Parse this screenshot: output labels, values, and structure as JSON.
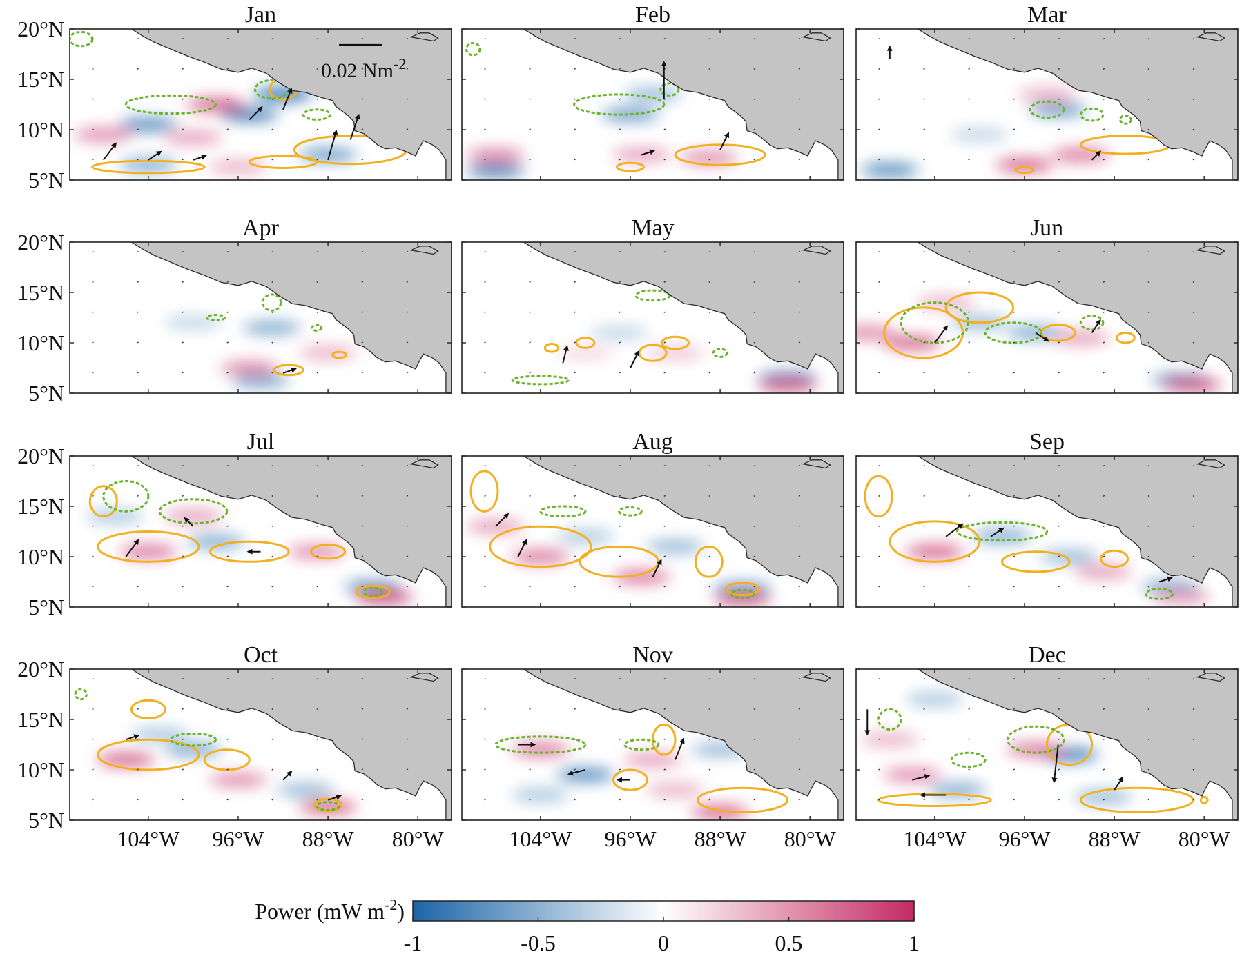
{
  "chart_data": {
    "type": "heatmap",
    "panels": [
      {
        "title": "Jan",
        "blobs": [
          [
            -104,
            10.5,
            -0.8
          ],
          [
            -95,
            11.5,
            -0.9
          ],
          [
            -92,
            13.5,
            -1.0
          ],
          [
            -98,
            12.5,
            0.8
          ],
          [
            -108,
            9.5,
            0.6
          ],
          [
            -100,
            9.2,
            0.5
          ],
          [
            -88,
            7.5,
            -0.7
          ],
          [
            -104,
            6.5,
            -0.6
          ],
          [
            -96,
            6.3,
            0.4
          ]
        ],
        "green": [
          [
            -102,
            12.5,
            4,
            0.9
          ],
          [
            -93,
            14,
            1.5,
            0.9
          ],
          [
            -110,
            19,
            1,
            0.7
          ],
          [
            -89,
            11.5,
            1.2,
            0.5
          ]
        ],
        "orange": [
          [
            -92,
            14,
            1.2,
            1
          ],
          [
            -86,
            8,
            5,
            1.4
          ],
          [
            -104,
            6.3,
            5,
            0.6
          ],
          [
            -92,
            6.8,
            3,
            0.6
          ]
        ],
        "arrows": [
          [
            -108,
            7,
            0.3,
            0.4
          ],
          [
            -104,
            7,
            0.3,
            0.2
          ],
          [
            -100,
            7,
            0.3,
            0.1
          ],
          [
            -95,
            11,
            0.3,
            0.3
          ],
          [
            -92,
            12,
            0.2,
            0.5
          ],
          [
            -86,
            9,
            0.2,
            0.6
          ],
          [
            -88,
            7,
            0.2,
            0.7
          ]
        ]
      },
      {
        "title": "Feb",
        "blobs": [
          [
            -108,
            6,
            -0.9
          ],
          [
            -96,
            11.5,
            -0.7
          ],
          [
            -108,
            7.5,
            0.6
          ],
          [
            -95,
            7.5,
            0.5
          ],
          [
            -89,
            7.2,
            0.6
          ],
          [
            -94,
            13.5,
            -0.5
          ]
        ],
        "green": [
          [
            -97,
            12.5,
            4,
            1
          ],
          [
            -92.5,
            14,
            0.8,
            0.6
          ],
          [
            -110,
            18,
            0.6,
            0.6
          ]
        ],
        "orange": [
          [
            -88,
            7.5,
            4,
            1
          ],
          [
            -96,
            6.3,
            1.2,
            0.4
          ]
        ],
        "arrows": [
          [
            -93,
            13,
            0,
            0.9
          ],
          [
            -88,
            8,
            0.2,
            0.4
          ],
          [
            -95,
            7.5,
            0.3,
            0.1
          ]
        ]
      },
      {
        "title": "Mar",
        "blobs": [
          [
            -108,
            6,
            -0.8
          ],
          [
            -93,
            12,
            -0.7
          ],
          [
            -94,
            13.5,
            0.4
          ],
          [
            -91,
            7.5,
            0.7
          ],
          [
            -96,
            6.5,
            0.8
          ],
          [
            -100,
            9.5,
            -0.3
          ]
        ],
        "green": [
          [
            -94,
            12,
            1.5,
            0.8
          ],
          [
            -90,
            11.5,
            1,
            0.6
          ],
          [
            -87,
            11,
            0.5,
            0.4
          ]
        ],
        "orange": [
          [
            -87,
            8.5,
            4,
            0.9
          ],
          [
            -96,
            6,
            0.8,
            0.3
          ]
        ],
        "arrows": [
          [
            -108,
            17,
            0,
            0.3
          ],
          [
            -90,
            7,
            0.2,
            0.2
          ]
        ]
      },
      {
        "title": "Apr",
        "blobs": [
          [
            -93,
            11.5,
            -0.6
          ],
          [
            -95,
            7.5,
            0.6
          ],
          [
            -94,
            6.2,
            -0.6
          ],
          [
            -100,
            12,
            -0.3
          ],
          [
            -88,
            9,
            0.4
          ]
        ],
        "green": [
          [
            -93,
            14,
            0.8,
            0.8
          ],
          [
            -98,
            12.5,
            0.8,
            0.2
          ],
          [
            -89,
            11.5,
            0.4,
            0.3
          ]
        ],
        "orange": [
          [
            -91.5,
            7.3,
            1.3,
            0.5
          ],
          [
            -87,
            8.8,
            0.6,
            0.3
          ]
        ],
        "arrows": [
          [
            -92,
            7,
            0.3,
            0.1
          ]
        ]
      },
      {
        "title": "May",
        "blobs": [
          [
            -82,
            6.5,
            -0.8
          ],
          [
            -82,
            5.8,
            0.8
          ],
          [
            -97,
            11,
            -0.3
          ],
          [
            -92,
            9,
            0.3
          ],
          [
            -100,
            9,
            0.2
          ]
        ],
        "green": [
          [
            -94,
            14.7,
            1.5,
            0.5
          ],
          [
            -104,
            6.3,
            2.5,
            0.4
          ],
          [
            -88,
            9,
            0.6,
            0.4
          ]
        ],
        "orange": [
          [
            -94,
            9,
            1.2,
            0.8
          ],
          [
            -92,
            10,
            1.2,
            0.6
          ],
          [
            -100,
            10,
            0.8,
            0.5
          ],
          [
            -103,
            9.5,
            0.6,
            0.4
          ]
        ],
        "arrows": [
          [
            -96,
            7.5,
            0.2,
            0.4
          ],
          [
            -102,
            8,
            0.1,
            0.4
          ]
        ]
      },
      {
        "title": "Jun",
        "blobs": [
          [
            -110,
            11,
            0.6
          ],
          [
            -106,
            10,
            0.8
          ],
          [
            -100,
            12,
            -0.5
          ],
          [
            -95,
            11,
            -0.6
          ],
          [
            -91,
            10.5,
            0.5
          ],
          [
            -82,
            6.3,
            -0.8
          ],
          [
            -81,
            5.8,
            0.8
          ],
          [
            -103,
            14,
            0.4
          ]
        ],
        "green": [
          [
            -104,
            12,
            3,
            2
          ],
          [
            -97,
            11,
            2.5,
            1
          ],
          [
            -90,
            12,
            1,
            0.7
          ]
        ],
        "orange": [
          [
            -105,
            11,
            3.5,
            2.5
          ],
          [
            -100,
            13.5,
            3,
            1.5
          ],
          [
            -93,
            11,
            1.5,
            0.8
          ],
          [
            -87,
            10.5,
            0.8,
            0.5
          ]
        ],
        "arrows": [
          [
            -104,
            10,
            0.3,
            0.4
          ],
          [
            -95,
            11,
            0.3,
            -0.2
          ],
          [
            -90,
            11,
            0.2,
            0.3
          ]
        ]
      },
      {
        "title": "Jul",
        "blobs": [
          [
            -104,
            10.5,
            0.7
          ],
          [
            -98,
            11.5,
            -0.6
          ],
          [
            -89,
            10.5,
            0.6
          ],
          [
            -84,
            7,
            -0.7
          ],
          [
            -83,
            6,
            0.9
          ],
          [
            -100,
            14,
            0.5
          ],
          [
            -107,
            14,
            -0.4
          ]
        ],
        "green": [
          [
            -106,
            16,
            2,
            1.5
          ],
          [
            -100,
            14.5,
            3,
            1.2
          ],
          [
            -84,
            6.5,
            0.8,
            0.4
          ]
        ],
        "orange": [
          [
            -104,
            11,
            4.5,
            1.5
          ],
          [
            -95,
            10.5,
            3.5,
            1
          ],
          [
            -88,
            10.5,
            1.5,
            0.7
          ],
          [
            -108,
            15.5,
            1.2,
            1.5
          ],
          [
            -84,
            6.5,
            1.5,
            0.6
          ]
        ],
        "arrows": [
          [
            -94,
            10.5,
            -0.3,
            0
          ],
          [
            -106,
            10,
            0.3,
            0.4
          ],
          [
            -100,
            13,
            -0.2,
            0.2
          ]
        ]
      },
      {
        "title": "Aug",
        "blobs": [
          [
            -104,
            10,
            0.7
          ],
          [
            -95,
            8,
            0.7
          ],
          [
            -92,
            11,
            -0.5
          ],
          [
            -86,
            6.8,
            -0.7
          ],
          [
            -86,
            5.8,
            0.8
          ],
          [
            -100,
            12,
            -0.4
          ],
          [
            -108,
            13,
            0.5
          ]
        ],
        "green": [
          [
            -102,
            14.5,
            2,
            0.5
          ],
          [
            -96,
            14.5,
            1,
            0.4
          ],
          [
            -86,
            6.3,
            1,
            0.4
          ]
        ],
        "orange": [
          [
            -104,
            11,
            4.5,
            2
          ],
          [
            -97,
            9.5,
            3.5,
            1.5
          ],
          [
            -89,
            9.5,
            1.2,
            1.5
          ],
          [
            -109,
            16.5,
            1.2,
            2
          ],
          [
            -86,
            6.8,
            1.5,
            0.6
          ]
        ],
        "arrows": [
          [
            -108,
            13,
            0.3,
            0.3
          ],
          [
            -106,
            10,
            0.2,
            0.4
          ],
          [
            -94,
            8,
            0.2,
            0.4
          ]
        ]
      },
      {
        "title": "Sep",
        "blobs": [
          [
            -104,
            10.5,
            0.8
          ],
          [
            -98,
            12,
            -0.6
          ],
          [
            -92,
            10,
            -0.5
          ],
          [
            -89,
            8.5,
            0.5
          ],
          [
            -83,
            7,
            -0.6
          ],
          [
            -82,
            6,
            0.5
          ]
        ],
        "green": [
          [
            -98,
            12.5,
            4,
            0.9
          ],
          [
            -84,
            6.3,
            1.2,
            0.5
          ]
        ],
        "orange": [
          [
            -104,
            11.5,
            4,
            2
          ],
          [
            -95,
            9.5,
            3,
            1
          ],
          [
            -88,
            9.8,
            1.2,
            0.8
          ],
          [
            -109,
            16,
            1.2,
            2
          ]
        ],
        "arrows": [
          [
            -103,
            12,
            0.4,
            0.3
          ],
          [
            -99,
            12,
            0.3,
            0.2
          ],
          [
            -84,
            7.5,
            0.3,
            0.1
          ]
        ]
      },
      {
        "title": "Oct",
        "blobs": [
          [
            -106,
            11,
            0.8
          ],
          [
            -100,
            12,
            -0.6
          ],
          [
            -96,
            9,
            0.6
          ],
          [
            -90,
            8,
            -0.5
          ],
          [
            -88,
            6.3,
            0.8
          ],
          [
            -103,
            13.5,
            -0.4
          ]
        ],
        "green": [
          [
            -100,
            13,
            2,
            0.6
          ],
          [
            -88,
            6.4,
            1,
            0.4
          ],
          [
            -110,
            17.5,
            0.5,
            0.5
          ]
        ],
        "orange": [
          [
            -104,
            11.5,
            4.5,
            1.5
          ],
          [
            -97,
            11,
            2,
            1
          ],
          [
            -88,
            6.5,
            1.2,
            0.6
          ],
          [
            -104,
            16,
            1.5,
            0.9
          ]
        ],
        "arrows": [
          [
            -106,
            13,
            0.3,
            0.1
          ],
          [
            -92,
            9,
            0.2,
            0.2
          ],
          [
            -88,
            7,
            0.3,
            0.1
          ]
        ]
      },
      {
        "title": "Nov",
        "blobs": [
          [
            -104,
            12,
            0.7
          ],
          [
            -100,
            9.5,
            -0.8
          ],
          [
            -94,
            11,
            0.5
          ],
          [
            -92,
            8,
            0.4
          ],
          [
            -88,
            5.8,
            0.8
          ],
          [
            -88,
            12,
            -0.5
          ],
          [
            -104,
            7.5,
            -0.4
          ]
        ],
        "green": [
          [
            -104,
            12.5,
            4,
            0.8
          ],
          [
            -95,
            12.5,
            1.5,
            0.5
          ]
        ],
        "orange": [
          [
            -93,
            13,
            1,
            1.5
          ],
          [
            -96,
            9,
            1.5,
            1
          ],
          [
            -86,
            7,
            4,
            1.2
          ]
        ],
        "arrows": [
          [
            -106,
            12.5,
            0.4,
            0
          ],
          [
            -100,
            10,
            -0.4,
            -0.1
          ],
          [
            -96,
            9,
            -0.3,
            0
          ],
          [
            -92,
            11,
            0.2,
            0.5
          ]
        ]
      },
      {
        "title": "Dec",
        "blobs": [
          [
            -106,
            9.5,
            0.6
          ],
          [
            -102,
            8,
            -0.6
          ],
          [
            -92,
            11.5,
            -0.9
          ],
          [
            -95,
            12,
            0.7
          ],
          [
            -89,
            7.3,
            -0.5
          ],
          [
            -108,
            13,
            0.4
          ],
          [
            -104,
            17,
            -0.4
          ]
        ],
        "green": [
          [
            -95,
            13,
            2.5,
            1.3
          ],
          [
            -108,
            15,
            1,
            1
          ],
          [
            -101,
            11,
            1.5,
            0.7
          ]
        ],
        "orange": [
          [
            -92,
            12.5,
            2,
            2
          ],
          [
            -104,
            7,
            5,
            0.6
          ],
          [
            -86,
            7,
            5,
            1.2
          ],
          [
            -80,
            7,
            0.3,
            0.3
          ]
        ],
        "arrows": [
          [
            -106,
            9,
            0.4,
            0.1
          ],
          [
            -103,
            7.5,
            -0.6,
            0
          ],
          [
            -93,
            12.5,
            -0.1,
            -0.9
          ],
          [
            -88,
            8,
            0.2,
            0.3
          ],
          [
            -110,
            16,
            0,
            -0.6
          ]
        ]
      }
    ],
    "lon_ticks": [
      {
        "value": -104,
        "label": "104°W"
      },
      {
        "value": -96,
        "label": "96°W"
      },
      {
        "value": -88,
        "label": "88°W"
      },
      {
        "value": -80,
        "label": "80°W"
      }
    ],
    "lat_ticks": [
      {
        "value": 20,
        "label": "20°N"
      },
      {
        "value": 15,
        "label": "15°N"
      },
      {
        "value": 10,
        "label": "10°N"
      },
      {
        "value": 5,
        "label": "5°N"
      }
    ],
    "xlim": [
      -111,
      -77
    ],
    "ylim": [
      5,
      20
    ],
    "scale_arrow_label": "0.02 Nm",
    "scale_arrow_exponent": "-2",
    "colorbar": {
      "label": "Power (mW m",
      "label_exponent": "-2",
      "label_close": ")",
      "range": [
        -1,
        1
      ],
      "ticks": [
        {
          "value": -1,
          "label": "-1"
        },
        {
          "value": -0.5,
          "label": "-0.5"
        },
        {
          "value": 0,
          "label": "0"
        },
        {
          "value": 0.5,
          "label": "0.5"
        },
        {
          "value": 1,
          "label": "1"
        }
      ],
      "colors": [
        "#1c64a6",
        "#ffffff",
        "#c42a62"
      ]
    },
    "contour_colors": {
      "green": "#6ab42a",
      "orange": "#f2b020"
    },
    "land_color": "#c4c4c4"
  }
}
